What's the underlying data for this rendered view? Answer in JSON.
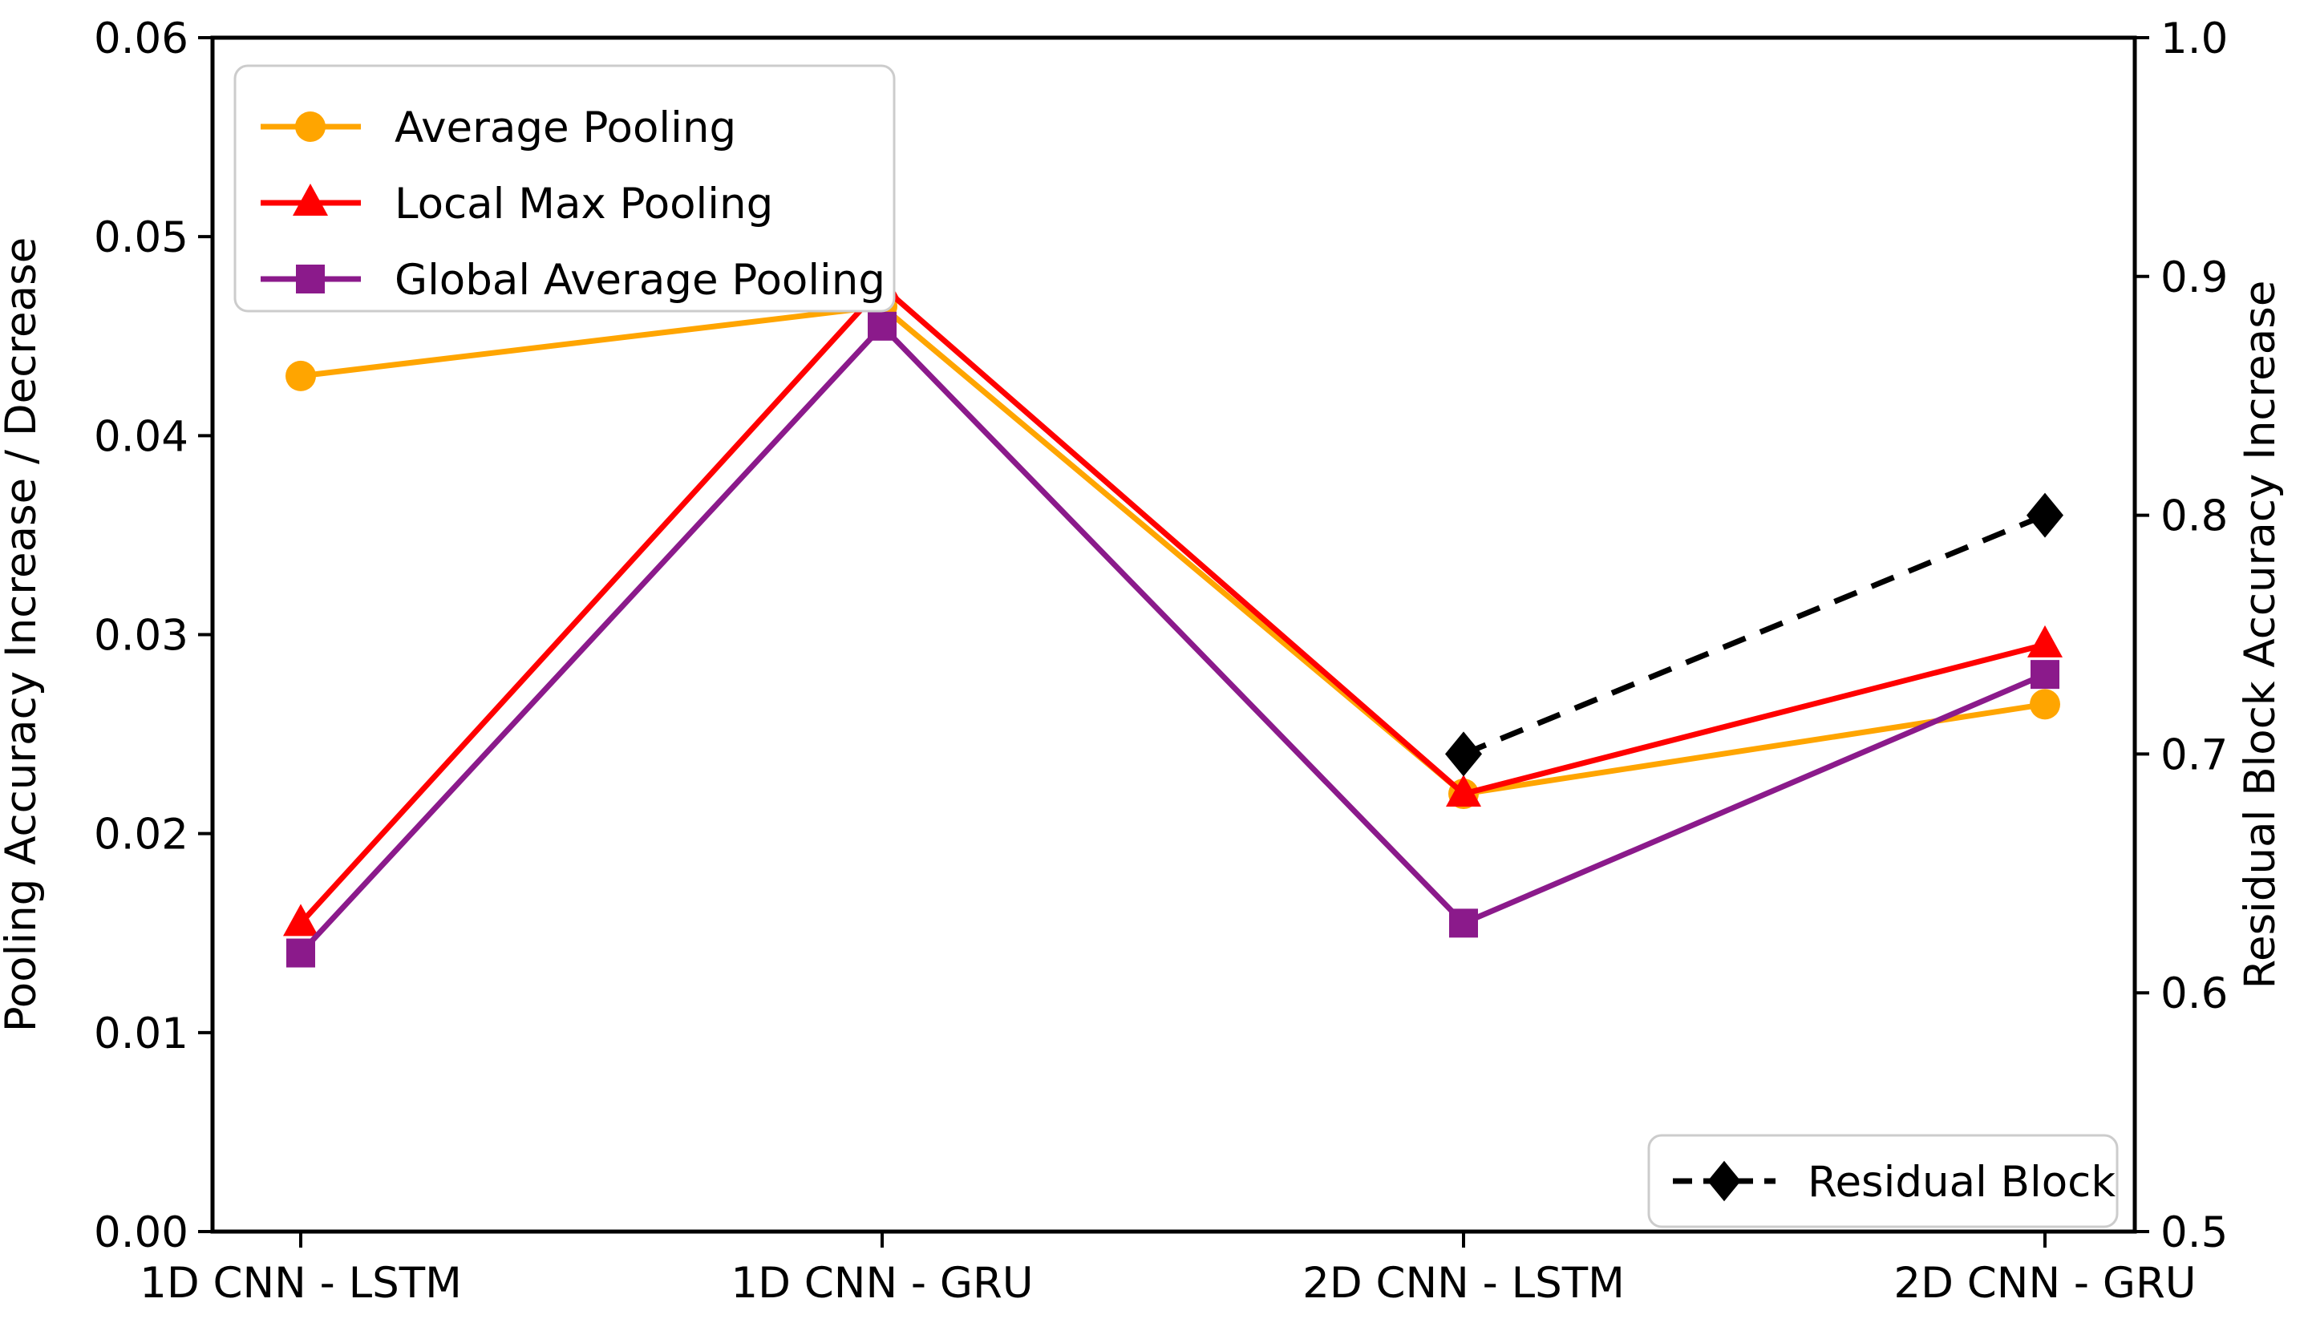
{
  "chart_data": {
    "type": "line",
    "categories": [
      "1D CNN - LSTM",
      "1D CNN - GRU",
      "2D CNN - LSTM",
      "2D CNN - GRU"
    ],
    "left_axis": {
      "label": "Pooling Accuracy Increase / Decrease",
      "min": 0.0,
      "max": 0.06,
      "ticks": [
        {
          "label": "0.00",
          "value": 0.0
        },
        {
          "label": "0.01",
          "value": 0.01
        },
        {
          "label": "0.02",
          "value": 0.02
        },
        {
          "label": "0.03",
          "value": 0.03
        },
        {
          "label": "0.04",
          "value": 0.04
        },
        {
          "label": "0.05",
          "value": 0.05
        },
        {
          "label": "0.06",
          "value": 0.06
        }
      ]
    },
    "right_axis": {
      "label": "Residual Block Accuracy Increase",
      "min": 0.5,
      "max": 1.0,
      "ticks": [
        {
          "label": "0.5",
          "value": 0.5
        },
        {
          "label": "0.6",
          "value": 0.6
        },
        {
          "label": "0.7",
          "value": 0.7
        },
        {
          "label": "0.8",
          "value": 0.8
        },
        {
          "label": "0.9",
          "value": 0.9
        },
        {
          "label": "1.0",
          "value": 1.0
        }
      ]
    },
    "series": [
      {
        "name": "Average Pooling",
        "color": "#FFA500",
        "marker": "circle",
        "axis": "left",
        "line": "solid",
        "legend": "main",
        "values": [
          0.043,
          0.0465,
          0.022,
          0.0265
        ]
      },
      {
        "name": "Local Max Pooling",
        "color": "#FF0000",
        "marker": "triangle",
        "axis": "left",
        "line": "solid",
        "legend": "main",
        "values": [
          0.0155,
          0.0475,
          0.022,
          0.0295
        ]
      },
      {
        "name": "Global Average Pooling",
        "color": "#8B1A8B",
        "marker": "square",
        "axis": "left",
        "line": "solid",
        "legend": "main",
        "values": [
          0.014,
          0.0455,
          0.0155,
          0.028
        ]
      },
      {
        "name": "Residual Block",
        "color": "#000000",
        "marker": "diamond",
        "axis": "right",
        "line": "dashed",
        "legend": "secondary",
        "values": [
          null,
          null,
          0.7,
          0.8
        ]
      }
    ],
    "legend_main_labels": [
      "Average Pooling",
      "Local Max Pooling",
      "Global Average Pooling"
    ],
    "legend_secondary_labels": [
      "Residual Block"
    ],
    "grid": false,
    "background_color": "#ffffff",
    "axis_color": "#000000",
    "legend_border_color": "#cccccc"
  }
}
